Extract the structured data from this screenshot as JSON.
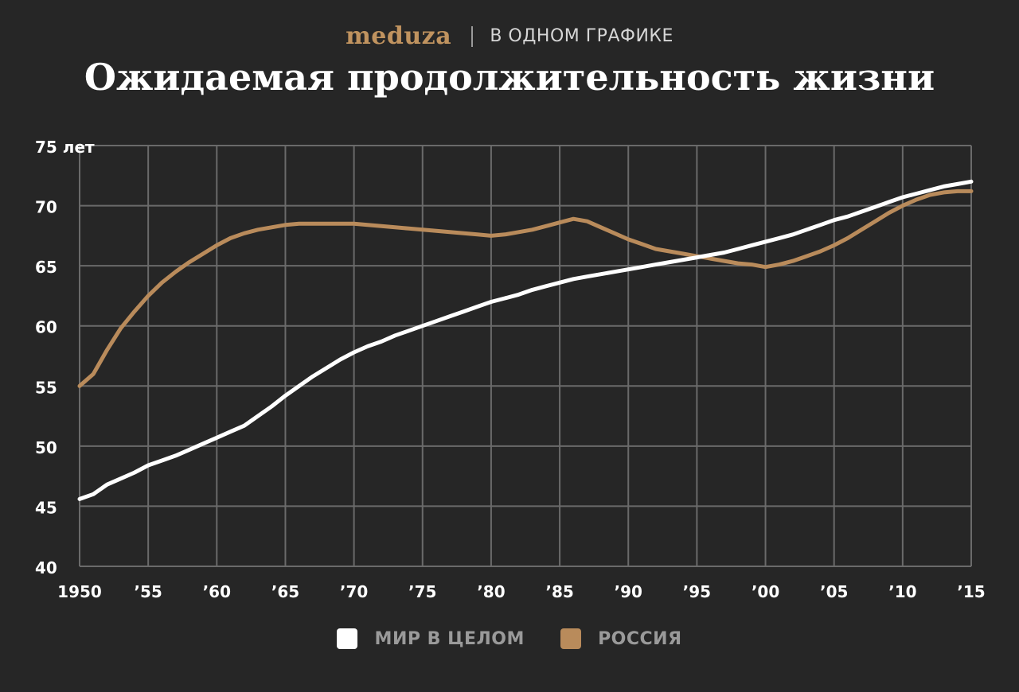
{
  "header": {
    "brand": "meduza",
    "section": "В ОДНОМ ГРАФИКЕ"
  },
  "colors": {
    "background": "#262626",
    "grid": "#6a6a6a",
    "brand": "#c0935f",
    "world": "#ffffff",
    "russia": "#b98b5b",
    "legend_text": "#9a9a9a"
  },
  "chart_data": {
    "type": "line",
    "title": "Ожидаемая продолжительность жизни",
    "ylim": [
      40,
      75
    ],
    "y_ticks": [
      {
        "value": 75,
        "label": "75 лет"
      },
      {
        "value": 70,
        "label": "70"
      },
      {
        "value": 65,
        "label": "65"
      },
      {
        "value": 60,
        "label": "60"
      },
      {
        "value": 55,
        "label": "55"
      },
      {
        "value": 50,
        "label": "50"
      },
      {
        "value": 45,
        "label": "45"
      },
      {
        "value": 40,
        "label": "40"
      }
    ],
    "xlim": [
      1950,
      2015
    ],
    "x_ticks": [
      {
        "value": 1950,
        "label": "1950"
      },
      {
        "value": 1955,
        "label": "’55"
      },
      {
        "value": 1960,
        "label": "’60"
      },
      {
        "value": 1965,
        "label": "’65"
      },
      {
        "value": 1970,
        "label": "’70"
      },
      {
        "value": 1975,
        "label": "’75"
      },
      {
        "value": 1980,
        "label": "’80"
      },
      {
        "value": 1985,
        "label": "’85"
      },
      {
        "value": 1990,
        "label": "’90"
      },
      {
        "value": 1995,
        "label": "’95"
      },
      {
        "value": 2000,
        "label": "’00"
      },
      {
        "value": 2005,
        "label": "’05"
      },
      {
        "value": 2010,
        "label": "’10"
      },
      {
        "value": 2015,
        "label": "’15"
      }
    ],
    "grid": true,
    "legend_position": "bottom",
    "series": [
      {
        "name": "МИР В ЦЕЛОМ",
        "color": "#ffffff",
        "points": [
          [
            1950,
            45.6
          ],
          [
            1951,
            46.0
          ],
          [
            1952,
            46.8
          ],
          [
            1953,
            47.3
          ],
          [
            1954,
            47.8
          ],
          [
            1955,
            48.4
          ],
          [
            1956,
            48.8
          ],
          [
            1957,
            49.2
          ],
          [
            1958,
            49.7
          ],
          [
            1959,
            50.2
          ],
          [
            1960,
            50.7
          ],
          [
            1961,
            51.2
          ],
          [
            1962,
            51.7
          ],
          [
            1963,
            52.5
          ],
          [
            1964,
            53.3
          ],
          [
            1965,
            54.2
          ],
          [
            1966,
            55.0
          ],
          [
            1967,
            55.8
          ],
          [
            1968,
            56.5
          ],
          [
            1969,
            57.2
          ],
          [
            1970,
            57.8
          ],
          [
            1971,
            58.3
          ],
          [
            1972,
            58.7
          ],
          [
            1973,
            59.2
          ],
          [
            1974,
            59.6
          ],
          [
            1975,
            60.0
          ],
          [
            1976,
            60.4
          ],
          [
            1977,
            60.8
          ],
          [
            1978,
            61.2
          ],
          [
            1979,
            61.6
          ],
          [
            1980,
            62.0
          ],
          [
            1981,
            62.3
          ],
          [
            1982,
            62.6
          ],
          [
            1983,
            63.0
          ],
          [
            1984,
            63.3
          ],
          [
            1985,
            63.6
          ],
          [
            1986,
            63.9
          ],
          [
            1987,
            64.1
          ],
          [
            1988,
            64.3
          ],
          [
            1989,
            64.5
          ],
          [
            1990,
            64.7
          ],
          [
            1991,
            64.9
          ],
          [
            1992,
            65.1
          ],
          [
            1993,
            65.3
          ],
          [
            1994,
            65.5
          ],
          [
            1995,
            65.7
          ],
          [
            1996,
            65.9
          ],
          [
            1997,
            66.1
          ],
          [
            1998,
            66.4
          ],
          [
            1999,
            66.7
          ],
          [
            2000,
            67.0
          ],
          [
            2001,
            67.3
          ],
          [
            2002,
            67.6
          ],
          [
            2003,
            68.0
          ],
          [
            2004,
            68.4
          ],
          [
            2005,
            68.8
          ],
          [
            2006,
            69.1
          ],
          [
            2007,
            69.5
          ],
          [
            2008,
            69.9
          ],
          [
            2009,
            70.3
          ],
          [
            2010,
            70.7
          ],
          [
            2011,
            71.0
          ],
          [
            2012,
            71.3
          ],
          [
            2013,
            71.6
          ],
          [
            2014,
            71.8
          ],
          [
            2015,
            72.0
          ]
        ]
      },
      {
        "name": "РОССИЯ",
        "color": "#b98b5b",
        "points": [
          [
            1950,
            55.0
          ],
          [
            1951,
            56.0
          ],
          [
            1952,
            58.0
          ],
          [
            1953,
            59.8
          ],
          [
            1954,
            61.2
          ],
          [
            1955,
            62.5
          ],
          [
            1956,
            63.6
          ],
          [
            1957,
            64.5
          ],
          [
            1958,
            65.3
          ],
          [
            1959,
            66.0
          ],
          [
            1960,
            66.7
          ],
          [
            1961,
            67.3
          ],
          [
            1962,
            67.7
          ],
          [
            1963,
            68.0
          ],
          [
            1964,
            68.2
          ],
          [
            1965,
            68.4
          ],
          [
            1966,
            68.5
          ],
          [
            1967,
            68.5
          ],
          [
            1968,
            68.5
          ],
          [
            1969,
            68.5
          ],
          [
            1970,
            68.5
          ],
          [
            1971,
            68.4
          ],
          [
            1972,
            68.3
          ],
          [
            1973,
            68.2
          ],
          [
            1974,
            68.1
          ],
          [
            1975,
            68.0
          ],
          [
            1976,
            67.9
          ],
          [
            1977,
            67.8
          ],
          [
            1978,
            67.7
          ],
          [
            1979,
            67.6
          ],
          [
            1980,
            67.5
          ],
          [
            1981,
            67.6
          ],
          [
            1982,
            67.8
          ],
          [
            1983,
            68.0
          ],
          [
            1984,
            68.3
          ],
          [
            1985,
            68.6
          ],
          [
            1986,
            68.9
          ],
          [
            1987,
            68.7
          ],
          [
            1988,
            68.2
          ],
          [
            1989,
            67.7
          ],
          [
            1990,
            67.2
          ],
          [
            1991,
            66.8
          ],
          [
            1992,
            66.4
          ],
          [
            1993,
            66.2
          ],
          [
            1994,
            66.0
          ],
          [
            1995,
            65.8
          ],
          [
            1996,
            65.6
          ],
          [
            1997,
            65.4
          ],
          [
            1998,
            65.2
          ],
          [
            1999,
            65.1
          ],
          [
            2000,
            64.9
          ],
          [
            2001,
            65.1
          ],
          [
            2002,
            65.4
          ],
          [
            2003,
            65.8
          ],
          [
            2004,
            66.2
          ],
          [
            2005,
            66.7
          ],
          [
            2006,
            67.3
          ],
          [
            2007,
            68.0
          ],
          [
            2008,
            68.7
          ],
          [
            2009,
            69.4
          ],
          [
            2010,
            70.0
          ],
          [
            2011,
            70.5
          ],
          [
            2012,
            70.9
          ],
          [
            2013,
            71.1
          ],
          [
            2014,
            71.2
          ],
          [
            2015,
            71.2
          ]
        ]
      }
    ]
  }
}
